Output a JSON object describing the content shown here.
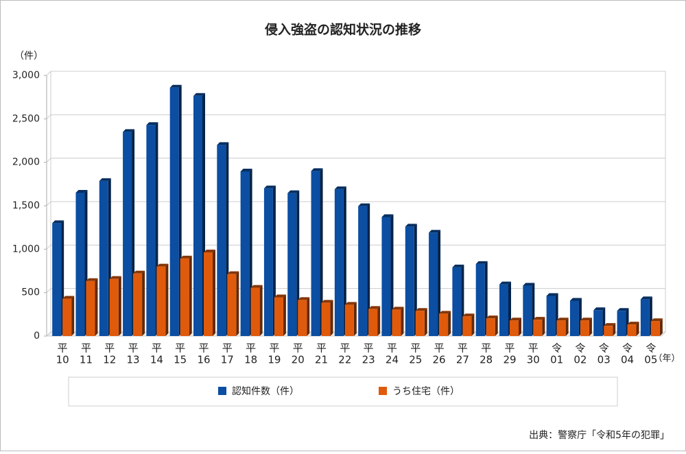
{
  "chart_data": {
    "type": "bar3d",
    "title": "侵入強盗の認知状況の推移",
    "y_unit": "（件）",
    "x_unit": "（年）",
    "source": "出典：警察庁「令和5年の犯罪」",
    "categories": [
      [
        "平",
        "10"
      ],
      [
        "平",
        "11"
      ],
      [
        "平",
        "12"
      ],
      [
        "平",
        "13"
      ],
      [
        "平",
        "14"
      ],
      [
        "平",
        "15"
      ],
      [
        "平",
        "16"
      ],
      [
        "平",
        "17"
      ],
      [
        "平",
        "18"
      ],
      [
        "平",
        "19"
      ],
      [
        "平",
        "20"
      ],
      [
        "平",
        "21"
      ],
      [
        "平",
        "22"
      ],
      [
        "平",
        "23"
      ],
      [
        "平",
        "24"
      ],
      [
        "平",
        "25"
      ],
      [
        "平",
        "26"
      ],
      [
        "平",
        "27"
      ],
      [
        "平",
        "28"
      ],
      [
        "平",
        "29"
      ],
      [
        "平",
        "30"
      ],
      [
        "令",
        "01"
      ],
      [
        "令",
        "02"
      ],
      [
        "令",
        "03"
      ],
      [
        "令",
        "04"
      ],
      [
        "令",
        "05"
      ]
    ],
    "series": [
      {
        "name": "認知件数（件）",
        "color": "#0b4ea2",
        "values": [
          1300,
          1650,
          1785,
          2350,
          2430,
          2860,
          2765,
          2200,
          1895,
          1700,
          1645,
          1900,
          1690,
          1495,
          1370,
          1260,
          1190,
          790,
          830,
          595,
          580,
          462,
          407,
          298,
          290,
          423
        ]
      },
      {
        "name": "うち住宅（件）",
        "color": "#e05a0c",
        "values": [
          430,
          634,
          658,
          720,
          800,
          893,
          963,
          713,
          556,
          446,
          415,
          384,
          360,
          313,
          305,
          290,
          258,
          227,
          204,
          180,
          188,
          180,
          180,
          117,
          133,
          172
        ]
      }
    ],
    "ylim": [
      0,
      3000
    ],
    "yticks": [
      0,
      500,
      {
        "value": 1000,
        "label": "1,000"
      },
      {
        "value": 1500,
        "label": "1,500"
      },
      {
        "value": 2000,
        "label": "2,000"
      },
      {
        "value": 2500,
        "label": "2,500"
      },
      {
        "value": 3000,
        "label": "3,000"
      }
    ],
    "grid": true
  }
}
